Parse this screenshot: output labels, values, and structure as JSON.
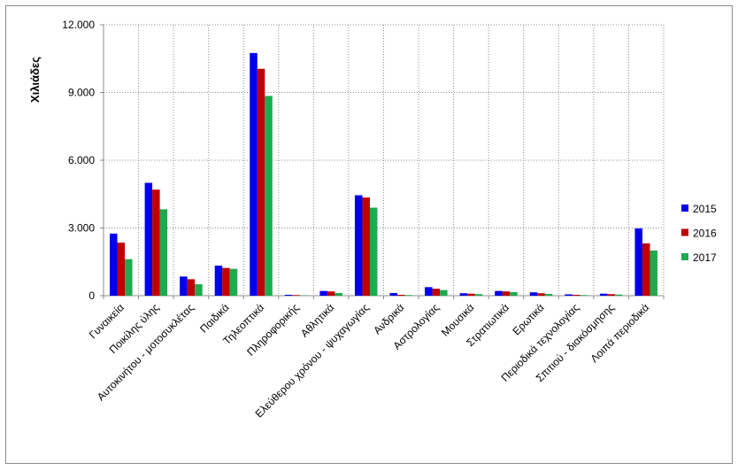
{
  "chart_data": {
    "type": "bar",
    "title": "",
    "xlabel": "",
    "ylabel": "Χιλιάδες",
    "ylim": [
      0,
      12000
    ],
    "yticks": [
      0,
      3000,
      6000,
      9000,
      12000
    ],
    "ytick_labels": [
      "0",
      "3.000",
      "6.000",
      "9.000",
      "12.000"
    ],
    "grid": "horizontal-dotted",
    "legend_position": "right",
    "categories": [
      "Γυναικεία",
      "Ποικίλης ύλης",
      "Αυτοκινήτου - μοτοσυκλέτας",
      "Παιδικά",
      "Τηλεοπτικά",
      "Πληροφορικής",
      "Αθλητικά",
      "Ελεύθερου χρόνου - ψυχαγωγίας",
      "Ανδρικά",
      "Αστρολογίας",
      "Μουσικά",
      "Στρατιωτικά",
      "Ερωτικά",
      "Περιοδικά τεχνολογίας",
      "Σπιτιού - διακόσμησης",
      "Λοιπά περιοδικά"
    ],
    "series": [
      {
        "name": "2015",
        "color": "#0000ee",
        "values": [
          2750,
          5000,
          850,
          1330,
          10750,
          40,
          210,
          4450,
          120,
          380,
          110,
          210,
          150,
          60,
          90,
          2980
        ]
      },
      {
        "name": "2016",
        "color": "#c00000",
        "values": [
          2350,
          4700,
          730,
          1230,
          10050,
          30,
          190,
          4350,
          40,
          310,
          90,
          190,
          110,
          40,
          70,
          2320
        ]
      },
      {
        "name": "2017",
        "color": "#1eaa4e",
        "values": [
          1620,
          3830,
          510,
          1190,
          8850,
          20,
          120,
          3900,
          30,
          250,
          70,
          160,
          80,
          30,
          50,
          2000
        ]
      }
    ]
  }
}
